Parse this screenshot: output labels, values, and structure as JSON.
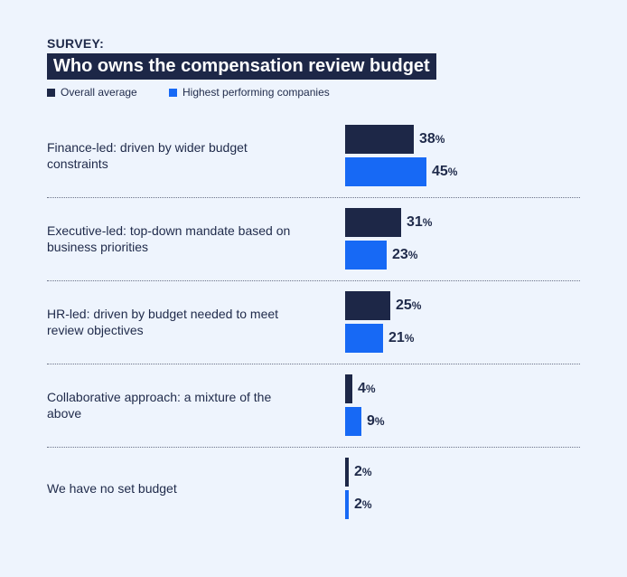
{
  "chart_data": {
    "type": "bar",
    "orientation": "horizontal",
    "kicker": "SURVEY:",
    "title": "Who owns the compensation review budget",
    "legend_position": "top-left",
    "unit": "%",
    "categories": [
      "Finance-led: driven by wider budget constraints",
      "Executive-led: top-down mandate based on business priorities",
      "HR-led: driven by budget needed to meet review objectives",
      "Collaborative approach: a mixture of the above",
      "We have no set budget"
    ],
    "series": [
      {
        "name": "Overall average",
        "color": "#1d2747",
        "values": [
          38,
          31,
          25,
          4,
          2
        ]
      },
      {
        "name": "Highest performing companies",
        "color": "#1769f5",
        "values": [
          45,
          23,
          21,
          9,
          2
        ]
      }
    ],
    "xlim": [
      0,
      100
    ],
    "grid": false
  }
}
